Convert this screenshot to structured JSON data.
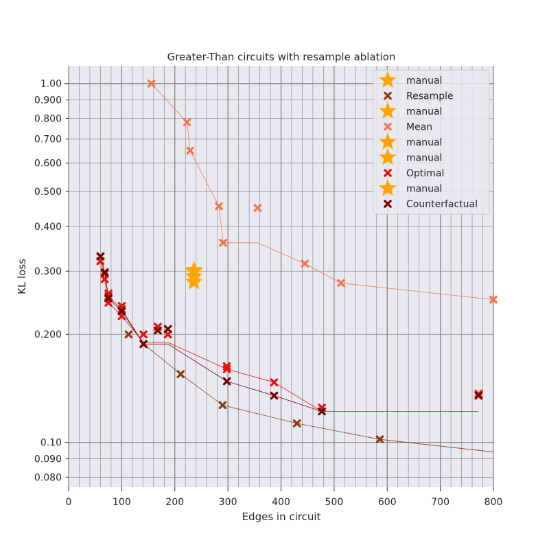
{
  "chart_data": {
    "type": "scatter",
    "title": "Greater-Than circuits with resample ablation",
    "xlabel": "Edges in circuit",
    "ylabel": "KL loss",
    "xlim": [
      0,
      800
    ],
    "ylim": [
      0.075,
      1.12
    ],
    "yscale": "log",
    "grid": true,
    "legend_position": "top-right",
    "x_ticks": [
      "0",
      "100",
      "200",
      "300",
      "400",
      "500",
      "600",
      "700",
      "800"
    ],
    "y_ticks": [
      "0.080",
      "0.090",
      "0.10",
      "0.200",
      "0.300",
      "0.400",
      "0.500",
      "0.600",
      "0.700",
      "0.800",
      "0.900",
      "1.00"
    ],
    "legend": [
      "manual",
      "Resample",
      "manual",
      "Mean",
      "manual",
      "manual",
      "Optimal",
      "manual",
      "Counterfactual"
    ],
    "colors": {
      "Resample": "#8b3a0f",
      "Mean": "#f4764a",
      "Optimal": "#e8100c",
      "Counterfactual": "#7a0000",
      "manual": "#ffa500"
    },
    "series": [
      {
        "name": "Resample",
        "points": [
          [
            60,
            0.33
          ],
          [
            68,
            0.295
          ],
          [
            75,
            0.255
          ],
          [
            100,
            0.235
          ],
          [
            113,
            0.2
          ],
          [
            141,
            0.188
          ],
          [
            211,
            0.155
          ],
          [
            290,
            0.127
          ],
          [
            430,
            0.113
          ],
          [
            586,
            0.102
          ]
        ],
        "frontier": [
          [
            60,
            0.33
          ],
          [
            68,
            0.295
          ],
          [
            75,
            0.255
          ],
          [
            100,
            0.235
          ],
          [
            141,
            0.188
          ],
          [
            211,
            0.155
          ],
          [
            290,
            0.127
          ],
          [
            430,
            0.113
          ],
          [
            586,
            0.102
          ],
          [
            800,
            0.094
          ]
        ]
      },
      {
        "name": "Mean",
        "points": [
          [
            156,
            1.0
          ],
          [
            223,
            0.78
          ],
          [
            229,
            0.65
          ],
          [
            283,
            0.455
          ],
          [
            291,
            0.36
          ],
          [
            356,
            0.45
          ],
          [
            445,
            0.315
          ],
          [
            513,
            0.278
          ],
          [
            800,
            0.25
          ],
          [
            772,
            0.137
          ]
        ],
        "frontier": [
          [
            156,
            1.0
          ],
          [
            223,
            0.78
          ],
          [
            229,
            0.65
          ],
          [
            283,
            0.455
          ],
          [
            291,
            0.36
          ],
          [
            356,
            0.36
          ],
          [
            445,
            0.315
          ],
          [
            513,
            0.278
          ],
          [
            800,
            0.25
          ]
        ]
      },
      {
        "name": "Optimal",
        "points": [
          [
            60,
            0.32
          ],
          [
            68,
            0.285
          ],
          [
            75,
            0.26
          ],
          [
            75,
            0.245
          ],
          [
            100,
            0.24
          ],
          [
            100,
            0.225
          ],
          [
            141,
            0.2
          ],
          [
            168,
            0.21
          ],
          [
            187,
            0.2
          ],
          [
            298,
            0.16
          ],
          [
            298,
            0.163
          ],
          [
            387,
            0.147
          ],
          [
            477,
            0.125
          ],
          [
            772,
            0.136
          ]
        ],
        "frontier": [
          [
            60,
            0.32
          ],
          [
            68,
            0.285
          ],
          [
            75,
            0.245
          ],
          [
            100,
            0.225
          ],
          [
            141,
            0.19
          ],
          [
            187,
            0.19
          ],
          [
            298,
            0.16
          ],
          [
            387,
            0.147
          ],
          [
            477,
            0.122
          ],
          [
            772,
            0.122
          ]
        ]
      },
      {
        "name": "Counterfactual",
        "points": [
          [
            60,
            0.33
          ],
          [
            68,
            0.298
          ],
          [
            75,
            0.252
          ],
          [
            100,
            0.232
          ],
          [
            141,
            0.188
          ],
          [
            168,
            0.205
          ],
          [
            187,
            0.207
          ],
          [
            298,
            0.148
          ],
          [
            387,
            0.135
          ],
          [
            477,
            0.122
          ],
          [
            772,
            0.135
          ]
        ],
        "frontier": [
          [
            60,
            0.33
          ],
          [
            68,
            0.298
          ],
          [
            75,
            0.252
          ],
          [
            100,
            0.232
          ],
          [
            141,
            0.188
          ],
          [
            187,
            0.188
          ],
          [
            298,
            0.148
          ],
          [
            387,
            0.135
          ],
          [
            477,
            0.122
          ]
        ]
      },
      {
        "name": "manual",
        "points": [
          [
            236,
            0.28
          ],
          [
            236,
            0.29
          ],
          [
            236,
            0.3
          ],
          [
            236,
            0.302
          ]
        ]
      }
    ]
  }
}
